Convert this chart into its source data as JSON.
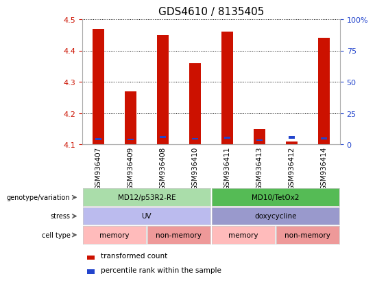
{
  "title": "GDS4610 / 8135405",
  "samples": [
    "GSM936407",
    "GSM936409",
    "GSM936408",
    "GSM936410",
    "GSM936411",
    "GSM936413",
    "GSM936412",
    "GSM936414"
  ],
  "red_values": [
    4.47,
    4.27,
    4.45,
    4.36,
    4.46,
    4.15,
    4.11,
    4.44
  ],
  "blue_values": [
    4.113,
    4.113,
    4.12,
    4.115,
    4.118,
    4.111,
    4.118,
    4.116
  ],
  "blue_heights": [
    0.007,
    0.006,
    0.007,
    0.006,
    0.007,
    0.006,
    0.01,
    0.006
  ],
  "ylim": [
    4.1,
    4.5
  ],
  "yticks_left": [
    4.1,
    4.2,
    4.3,
    4.4,
    4.5
  ],
  "yticks_right": [
    0,
    25,
    50,
    75,
    100
  ],
  "bar_bottom": 4.1,
  "bar_width": 0.35,
  "red_color": "#cc1100",
  "blue_color": "#2244cc",
  "grid_color": "#000000",
  "annotation_rows": [
    {
      "label": "genotype/variation",
      "segments": [
        {
          "text": "MD12/p53R2-RE",
          "span": [
            0,
            4
          ],
          "color": "#aaddaa"
        },
        {
          "text": "MD10/TetOx2",
          "span": [
            4,
            8
          ],
          "color": "#55bb55"
        }
      ]
    },
    {
      "label": "stress",
      "segments": [
        {
          "text": "UV",
          "span": [
            0,
            4
          ],
          "color": "#bbbbee"
        },
        {
          "text": "doxycycline",
          "span": [
            4,
            8
          ],
          "color": "#9999cc"
        }
      ]
    },
    {
      "label": "cell type",
      "segments": [
        {
          "text": "memory",
          "span": [
            0,
            2
          ],
          "color": "#ffbbbb"
        },
        {
          "text": "non-memory",
          "span": [
            2,
            4
          ],
          "color": "#ee9999"
        },
        {
          "text": "memory",
          "span": [
            4,
            6
          ],
          "color": "#ffbbbb"
        },
        {
          "text": "non-memory",
          "span": [
            6,
            8
          ],
          "color": "#ee9999"
        }
      ]
    }
  ],
  "legend_red": "transformed count",
  "legend_blue": "percentile rank within the sample",
  "title_fontsize": 11,
  "axis_label_color_left": "#cc1100",
  "axis_label_color_right": "#2244cc",
  "n_samples": 8
}
